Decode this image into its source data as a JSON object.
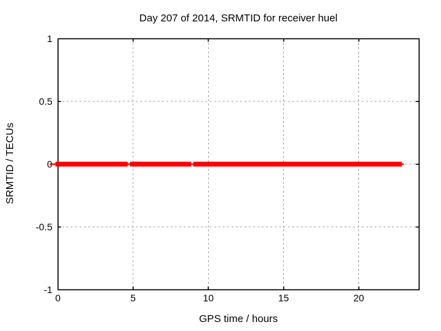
{
  "figure": {
    "background": "#ffffff",
    "border_color": "#000000",
    "grid_color": "#999999",
    "text_color": "#000000"
  },
  "chart_data": {
    "type": "line",
    "title": "Day 207 of 2014, SRMTID for receiver huel",
    "xlabel": "GPS time / hours",
    "ylabel": "SRMTID / TECUs",
    "xlim": [
      0,
      24
    ],
    "ylim": [
      -1,
      1
    ],
    "xticks": [
      {
        "value": 0,
        "label": "0"
      },
      {
        "value": 5,
        "label": "5"
      },
      {
        "value": 10,
        "label": "10"
      },
      {
        "value": 15,
        "label": "15"
      },
      {
        "value": 20,
        "label": "20"
      }
    ],
    "yticks": [
      {
        "value": 1,
        "label": "1"
      },
      {
        "value": 0.5,
        "label": "0.5"
      },
      {
        "value": 0,
        "label": "0"
      },
      {
        "value": -0.5,
        "label": "-0.5"
      },
      {
        "value": -1,
        "label": "-1"
      }
    ],
    "grid": "dashed",
    "legend": "none",
    "series": [
      {
        "name": "SRMTID",
        "color": "#ff0000",
        "y_value": 0,
        "style": "thick-band-with-thin-connector",
        "segments_hours": [
          [
            0,
            4.65
          ],
          [
            4.79,
            8.86
          ],
          [
            9.0,
            22.86
          ]
        ],
        "connector_hours": [
          0,
          23.0
        ]
      }
    ]
  }
}
